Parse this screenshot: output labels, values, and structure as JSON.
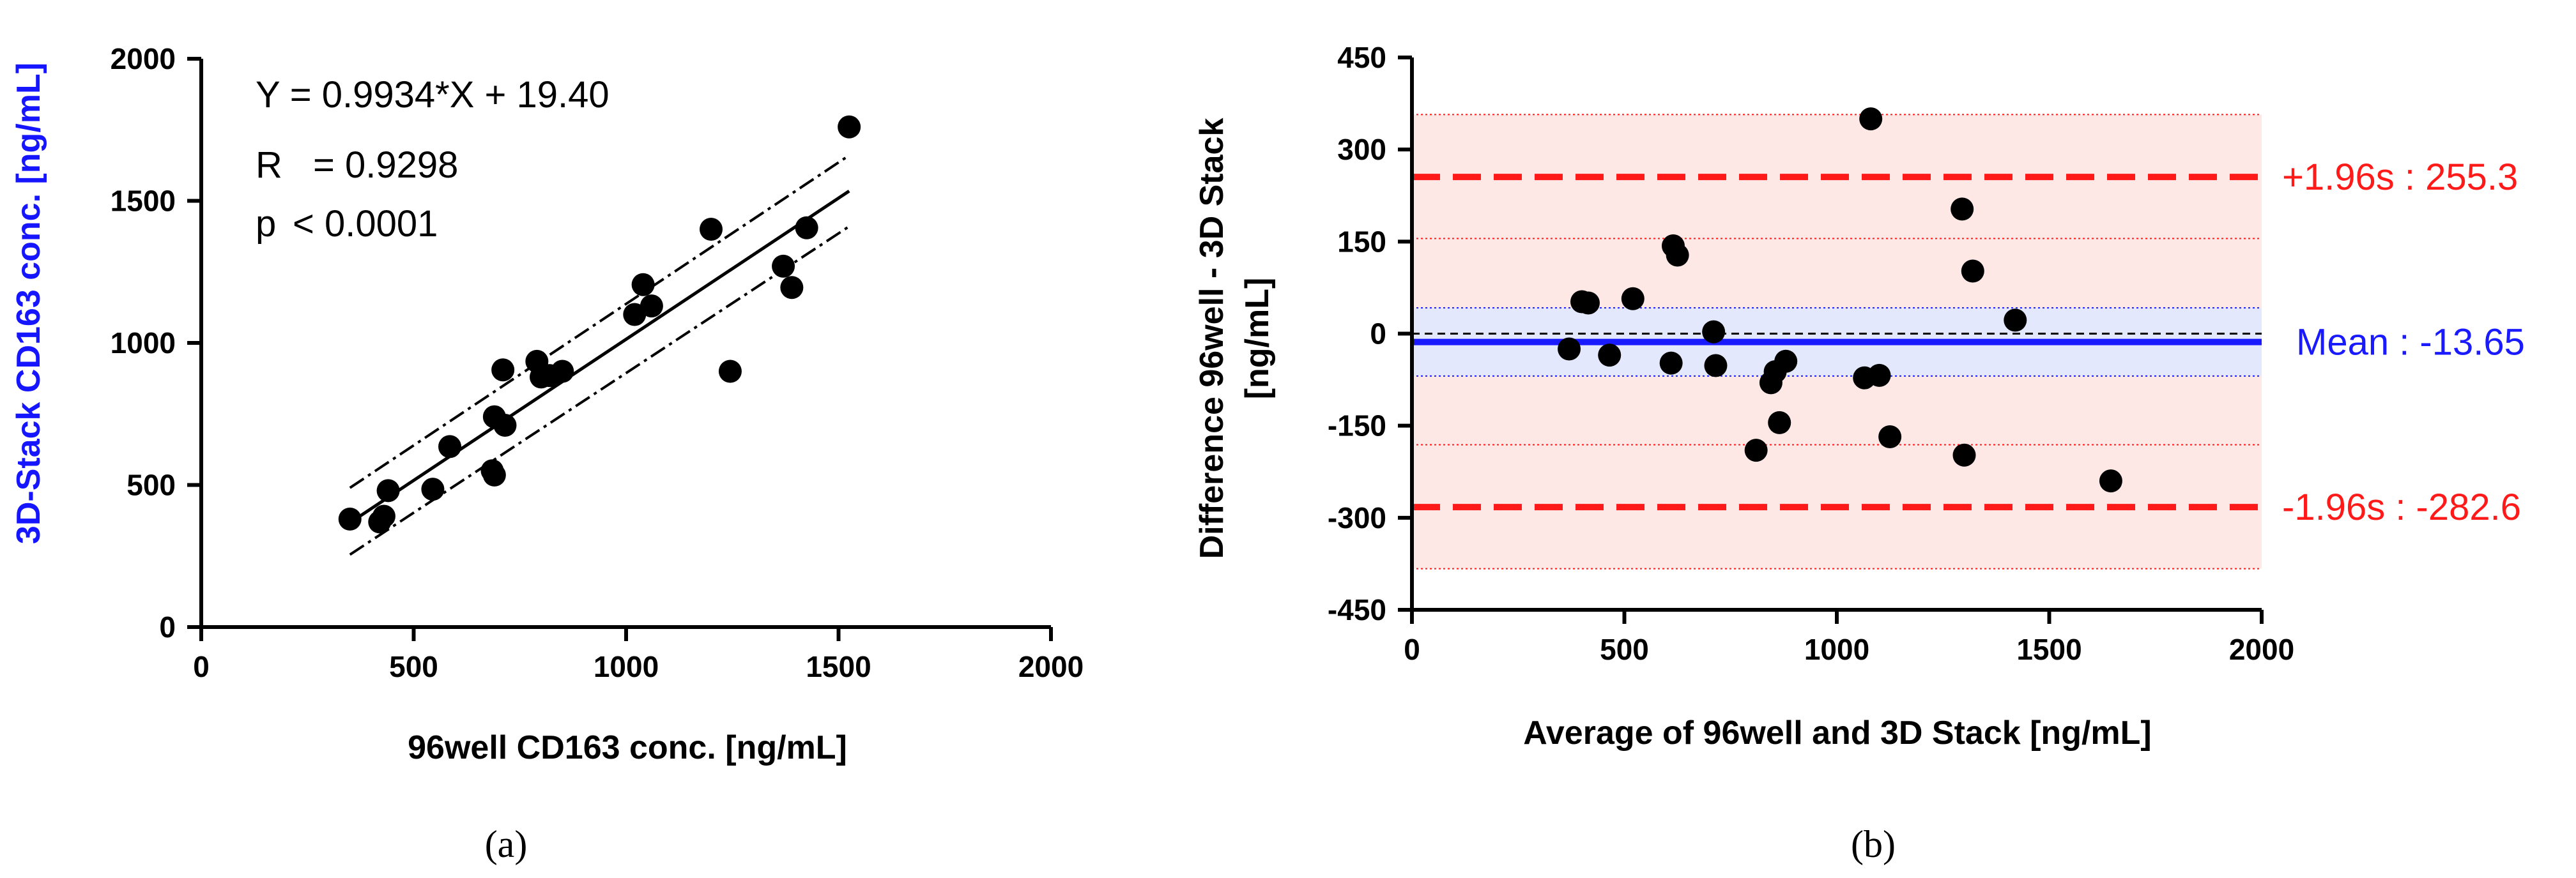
{
  "chart_data": [
    {
      "panel": "(a)",
      "type": "scatter",
      "xlabel": "96well  CD163 conc. [ng/mL]",
      "ylabel": "3D-Stack  CD163 conc. [ng/mL]",
      "xlim": [
        0,
        2000
      ],
      "ylim": [
        0,
        2000
      ],
      "xticks": [
        "0",
        "500",
        "1000",
        "1500",
        "2000"
      ],
      "yticks": [
        "0",
        "500",
        "1000",
        "1500",
        "2000"
      ],
      "annotations": {
        "equation": "Y = 0.9934*X + 19.40",
        "r_label": "R",
        "r_value": "= 0.9298",
        "p_label": "p",
        "p_value": "< 0.0001"
      },
      "regression": {
        "slope": 0.9934,
        "intercept": 19.4,
        "x_range": [
          350,
          1525
        ]
      },
      "ci_band": {
        "upper": [
          [
            350,
            490
          ],
          [
            1525,
            1660
          ]
        ],
        "lower": [
          [
            350,
            255
          ],
          [
            1525,
            1410
          ]
        ]
      },
      "points": [
        [
          350,
          380
        ],
        [
          420,
          370
        ],
        [
          430,
          390
        ],
        [
          440,
          480
        ],
        [
          545,
          485
        ],
        [
          585,
          635
        ],
        [
          685,
          550
        ],
        [
          690,
          535
        ],
        [
          690,
          740
        ],
        [
          710,
          905
        ],
        [
          715,
          710
        ],
        [
          790,
          935
        ],
        [
          800,
          880
        ],
        [
          820,
          885
        ],
        [
          850,
          900
        ],
        [
          1020,
          1100
        ],
        [
          1040,
          1205
        ],
        [
          1060,
          1130
        ],
        [
          1200,
          1400
        ],
        [
          1245,
          900
        ],
        [
          1370,
          1270
        ],
        [
          1390,
          1195
        ],
        [
          1425,
          1405
        ],
        [
          1525,
          1760
        ]
      ],
      "series_color": "#000000"
    },
    {
      "panel": "(b)",
      "type": "scatter",
      "subtype": "bland-altman",
      "xlabel": "Average of 96well and 3D Stack [ng/mL]",
      "ylabel_line1": "Difference 96well - 3D Stack",
      "ylabel_line2": "[ng/mL]",
      "xlim": [
        0,
        2000
      ],
      "ylim": [
        -450,
        450
      ],
      "xticks": [
        "0",
        "500",
        "1000",
        "1500",
        "2000"
      ],
      "yticks": [
        "-450",
        "-300",
        "-150",
        "0",
        "150",
        "300",
        "450"
      ],
      "mean": -13.65,
      "upper_loa": 255.3,
      "lower_loa": -282.6,
      "upper_loa_ci": [
        155,
        357
      ],
      "lower_loa_ci": [
        -383,
        -181
      ],
      "mean_ci": [
        -69,
        42
      ],
      "labels": {
        "upper": "+1.96s : 255.3",
        "mean": "Mean : -13.65",
        "lower": "-1.96s : -282.6"
      },
      "colors": {
        "loa": "#ff1a1a",
        "loa_band": "#fde8e6",
        "mean": "#1a1aff",
        "mean_band": "#e4e8fc"
      },
      "points": [
        [
          370,
          -25
        ],
        [
          400,
          52
        ],
        [
          415,
          50
        ],
        [
          465,
          -35
        ],
        [
          520,
          57
        ],
        [
          610,
          -48
        ],
        [
          615,
          143
        ],
        [
          625,
          128
        ],
        [
          710,
          3
        ],
        [
          715,
          -52
        ],
        [
          810,
          -190
        ],
        [
          845,
          -80
        ],
        [
          855,
          -62
        ],
        [
          865,
          -145
        ],
        [
          880,
          -45
        ],
        [
          1065,
          -72
        ],
        [
          1080,
          350
        ],
        [
          1100,
          -68
        ],
        [
          1125,
          -168
        ],
        [
          1295,
          203
        ],
        [
          1300,
          -198
        ],
        [
          1320,
          102
        ],
        [
          1420,
          22
        ],
        [
          1645,
          -240
        ]
      ]
    }
  ],
  "captions": {
    "a": "(a)",
    "b": "(b)"
  }
}
